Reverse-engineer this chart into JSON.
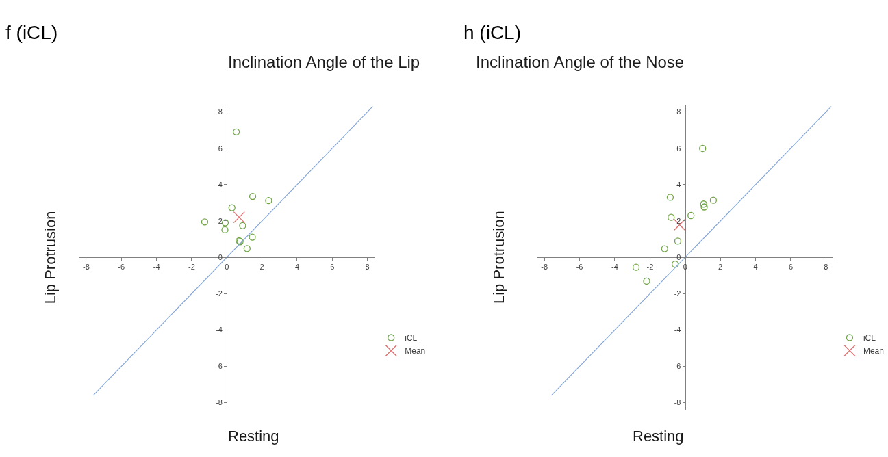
{
  "chart_data": [
    {
      "type": "scatter",
      "title": "Inclination Angle of the Lip",
      "xlabel": "Resting",
      "ylabel": "Lip Protrusion",
      "annotations": [
        "f (iCL)"
      ],
      "xlim": [
        -8.4,
        8.4
      ],
      "ylim": [
        -8.4,
        8.4
      ],
      "xticks": [
        -8,
        -6,
        -4,
        -2,
        0,
        2,
        4,
        6,
        8
      ],
      "yticks": [
        -8,
        -6,
        -4,
        -2,
        0,
        2,
        4,
        6,
        8
      ],
      "legend": "right",
      "series": [
        {
          "name": "iCL",
          "color": "#70a447",
          "marker": "circle",
          "x": [
            0.54,
            1.47,
            2.38,
            0.29,
            -1.26,
            -0.09,
            -0.11,
            0.9,
            0.7,
            0.75,
            1.45,
            1.15
          ],
          "values": [
            6.9,
            3.35,
            3.12,
            2.73,
            1.95,
            1.9,
            1.51,
            1.74,
            0.91,
            0.86,
            1.11,
            0.48
          ]
        },
        {
          "name": "Mean",
          "color": "#e36b6b",
          "marker": "cross",
          "x": [
            0.7
          ],
          "values": [
            2.2
          ]
        },
        {
          "type": "line",
          "color": "#7ea2d8",
          "marker": "none",
          "line_style": "solid",
          "x": [
            -7.6,
            8.3
          ],
          "values": [
            -7.6,
            8.3
          ]
        }
      ]
    },
    {
      "type": "scatter",
      "title": "Inclination Angle of the Nose",
      "xlabel": "Resting",
      "ylabel": "Lip Protrusion",
      "annotations": [
        "h (iCL)"
      ],
      "xlim": [
        -8.4,
        8.4
      ],
      "ylim": [
        -8.4,
        8.4
      ],
      "xticks": [
        -8,
        -6,
        -4,
        -2,
        0,
        2,
        4,
        6,
        8
      ],
      "yticks": [
        -8,
        -6,
        -4,
        -2,
        0,
        2,
        4,
        6,
        8
      ],
      "legend": "right",
      "series": [
        {
          "name": "iCL",
          "color": "#70a447",
          "marker": "circle",
          "x": [
            0.99,
            -0.85,
            1.6,
            1.05,
            1.08,
            0.33,
            -0.8,
            -0.42,
            -1.17,
            -0.57,
            -2.79,
            -2.19
          ],
          "values": [
            5.99,
            3.3,
            3.14,
            2.93,
            2.77,
            2.3,
            2.2,
            0.89,
            0.47,
            -0.38,
            -0.55,
            -1.31
          ]
        },
        {
          "name": "Mean",
          "color": "#e36b6b",
          "marker": "cross",
          "x": [
            -0.32
          ],
          "values": [
            1.79
          ]
        },
        {
          "type": "line",
          "color": "#7ea2d8",
          "marker": "none",
          "line_style": "solid",
          "x": [
            -7.6,
            8.3
          ],
          "values": [
            -7.6,
            8.3
          ]
        }
      ]
    }
  ]
}
